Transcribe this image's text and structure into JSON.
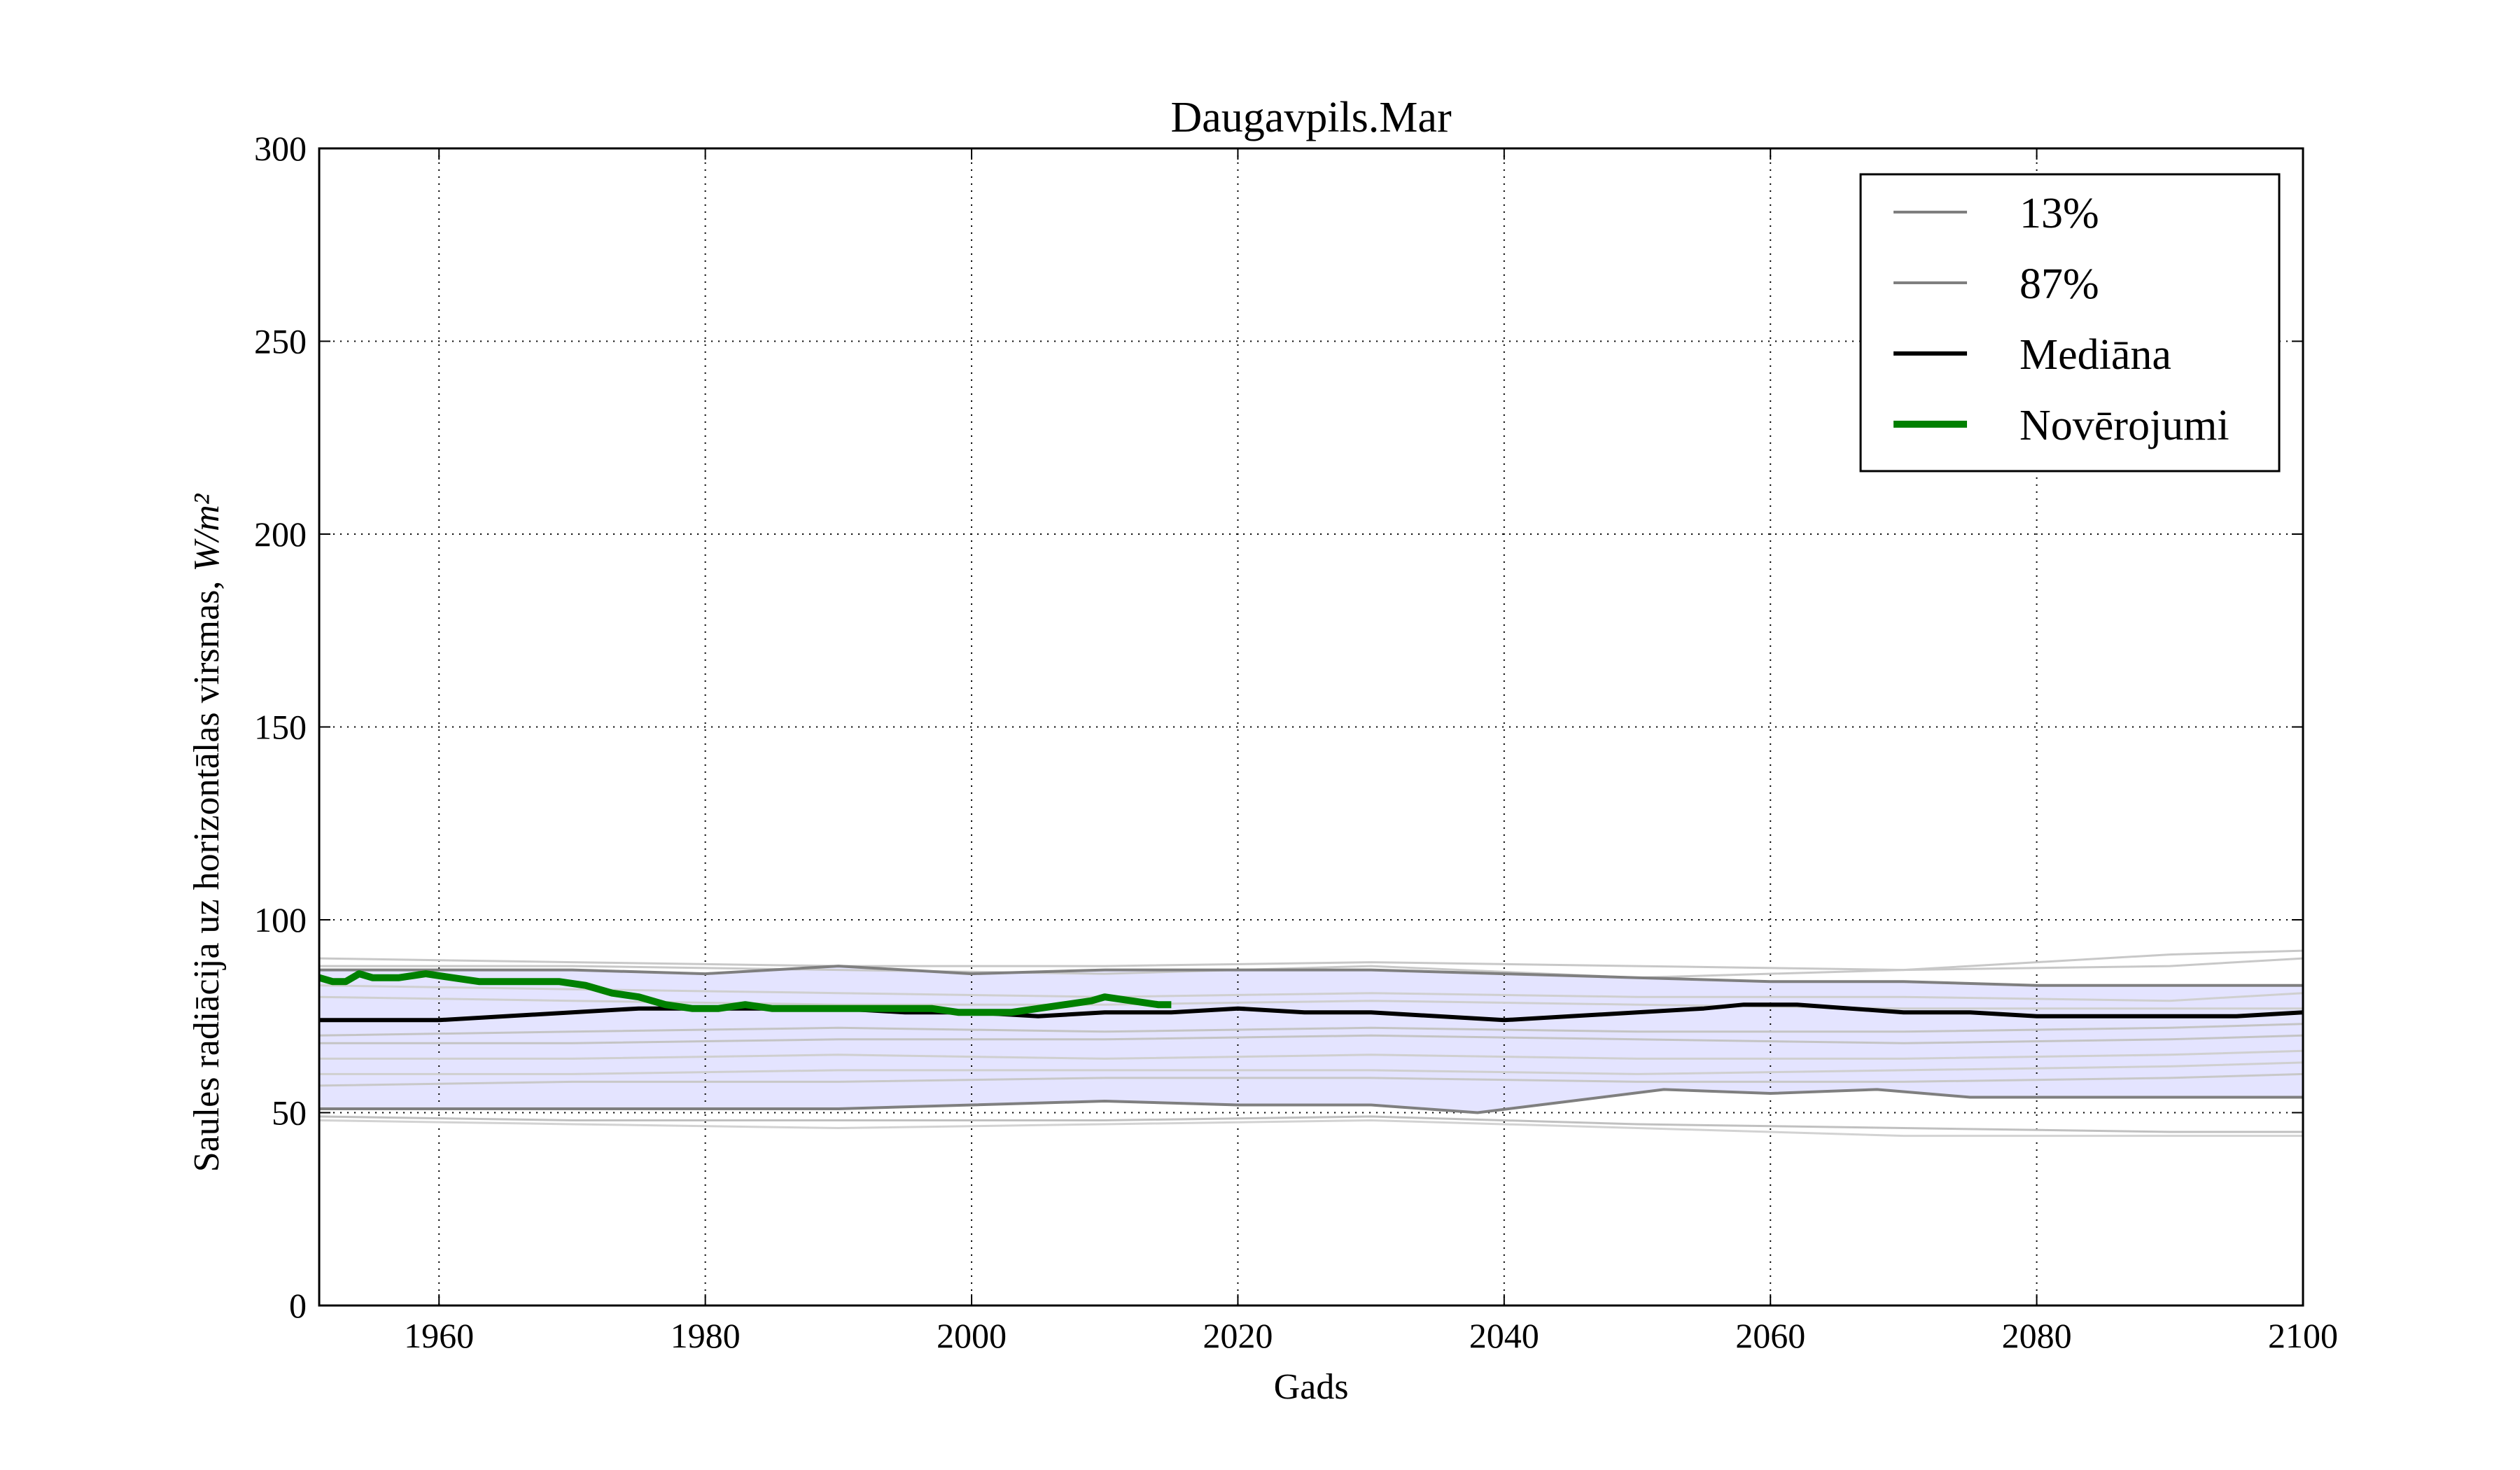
{
  "chart_data": {
    "type": "line",
    "title": "Daugavpils.Mar",
    "xlabel": "Gads",
    "ylabel": "Saules radiācija uz horizontālas virsmas,",
    "ylabel_unit": "W/m²",
    "xlim": [
      1951,
      2100
    ],
    "ylim": [
      0,
      300
    ],
    "xticks": [
      1960,
      1980,
      2000,
      2020,
      2040,
      2060,
      2080,
      2100
    ],
    "yticks": [
      0,
      50,
      100,
      150,
      200,
      250,
      300
    ],
    "grid": true,
    "grid_style": "dotted",
    "legend_position": "top-right",
    "band": {
      "color": "#e4e4ff",
      "lower_series": "13%",
      "upper_series": "87%"
    },
    "series": [
      {
        "name": "13%",
        "color": "#7f7f7f",
        "x": [
          1951,
          1960,
          1970,
          1980,
          1990,
          2000,
          2010,
          2020,
          2030,
          2038,
          2045,
          2052,
          2060,
          2068,
          2075,
          2085,
          2095,
          2100
        ],
        "y": [
          51,
          51,
          51,
          51,
          51,
          52,
          53,
          52,
          52,
          50,
          53,
          56,
          55,
          56,
          54,
          54,
          54,
          54
        ]
      },
      {
        "name": "87%",
        "color": "#7f7f7f",
        "x": [
          1951,
          1960,
          1970,
          1980,
          1990,
          2000,
          2010,
          2020,
          2030,
          2040,
          2050,
          2060,
          2070,
          2080,
          2090,
          2100
        ],
        "y": [
          87,
          87,
          87,
          86,
          88,
          86,
          87,
          87,
          87,
          86,
          85,
          84,
          84,
          83,
          83,
          83
        ]
      },
      {
        "name": "Mediāna",
        "color": "#000000",
        "x": [
          1951,
          1955,
          1960,
          1965,
          1970,
          1975,
          1980,
          1985,
          1990,
          1995,
          2000,
          2005,
          2010,
          2015,
          2020,
          2025,
          2030,
          2035,
          2040,
          2045,
          2050,
          2055,
          2058,
          2062,
          2066,
          2070,
          2075,
          2080,
          2085,
          2090,
          2095,
          2100
        ],
        "y": [
          74,
          74,
          74,
          75,
          76,
          77,
          77,
          77,
          77,
          76,
          76,
          75,
          76,
          76,
          77,
          76,
          76,
          75,
          74,
          75,
          76,
          77,
          78,
          78,
          77,
          76,
          76,
          75,
          75,
          75,
          75,
          76
        ]
      },
      {
        "name": "Novērojumi",
        "color": "#008000",
        "x": [
          1951,
          1952,
          1953,
          1954,
          1955,
          1957,
          1959,
          1961,
          1963,
          1965,
          1967,
          1969,
          1971,
          1973,
          1975,
          1977,
          1979,
          1981,
          1983,
          1985,
          1987,
          1989,
          1991,
          1993,
          1995,
          1997,
          1999,
          2001,
          2003,
          2005,
          2007,
          2009,
          2010,
          2012,
          2014,
          2015
        ],
        "y": [
          85,
          84,
          84,
          86,
          85,
          85,
          86,
          85,
          84,
          84,
          84,
          84,
          83,
          81,
          80,
          78,
          77,
          77,
          78,
          77,
          77,
          77,
          77,
          77,
          77,
          77,
          76,
          76,
          76,
          77,
          78,
          79,
          80,
          79,
          78,
          78
        ]
      }
    ],
    "background_series": [
      {
        "color": "#c8c8c8",
        "x": [
          1951,
          1970,
          1990,
          2010,
          2030,
          2050,
          2070,
          2090,
          2100
        ],
        "y": [
          90,
          89,
          88,
          88,
          89,
          88,
          87,
          88,
          90
        ]
      },
      {
        "color": "#c8c8c8",
        "x": [
          1951,
          1970,
          1990,
          2010,
          2030,
          2050,
          2070,
          2090,
          2100
        ],
        "y": [
          88,
          88,
          87,
          86,
          88,
          85,
          87,
          91,
          92
        ]
      },
      {
        "color": "#cfcfcf",
        "x": [
          1951,
          1970,
          1990,
          2010,
          2030,
          2050,
          2070,
          2090,
          2100
        ],
        "y": [
          83,
          82,
          81,
          80,
          81,
          80,
          80,
          79,
          81
        ]
      },
      {
        "color": "#cfcfcf",
        "x": [
          1951,
          1970,
          1990,
          2010,
          2030,
          2050,
          2070,
          2090,
          2100
        ],
        "y": [
          80,
          79,
          78,
          78,
          79,
          78,
          77,
          77,
          77
        ]
      },
      {
        "color": "#c4c4c4",
        "x": [
          1951,
          1970,
          1990,
          2010,
          2030,
          2050,
          2070,
          2090,
          2100
        ],
        "y": [
          70,
          71,
          72,
          71,
          72,
          71,
          71,
          72,
          73
        ]
      },
      {
        "color": "#c4c4c4",
        "x": [
          1951,
          1970,
          1990,
          2010,
          2030,
          2050,
          2070,
          2090,
          2100
        ],
        "y": [
          68,
          68,
          69,
          69,
          70,
          69,
          68,
          69,
          70
        ]
      },
      {
        "color": "#cfcfcf",
        "x": [
          1951,
          1970,
          1990,
          2010,
          2030,
          2050,
          2070,
          2090,
          2100
        ],
        "y": [
          64,
          64,
          65,
          64,
          65,
          64,
          64,
          65,
          66
        ]
      },
      {
        "color": "#cfcfcf",
        "x": [
          1951,
          1970,
          1990,
          2010,
          2030,
          2050,
          2070,
          2090,
          2100
        ],
        "y": [
          60,
          60,
          61,
          61,
          61,
          60,
          61,
          62,
          63
        ]
      },
      {
        "color": "#c8c8c8",
        "x": [
          1951,
          1970,
          1990,
          2010,
          2030,
          2050,
          2070,
          2090,
          2100
        ],
        "y": [
          57,
          58,
          58,
          59,
          59,
          58,
          58,
          59,
          60
        ]
      },
      {
        "color": "#c0c0c0",
        "x": [
          1951,
          1970,
          1990,
          2010,
          2030,
          2050,
          2070,
          2090,
          2100
        ],
        "y": [
          49,
          48,
          48,
          48,
          49,
          47,
          46,
          45,
          45
        ]
      },
      {
        "color": "#d2d2d2",
        "x": [
          1951,
          1970,
          1990,
          2010,
          2030,
          2050,
          2070,
          2090,
          2100
        ],
        "y": [
          48,
          47,
          46,
          47,
          48,
          46,
          44,
          44,
          44
        ]
      }
    ]
  }
}
